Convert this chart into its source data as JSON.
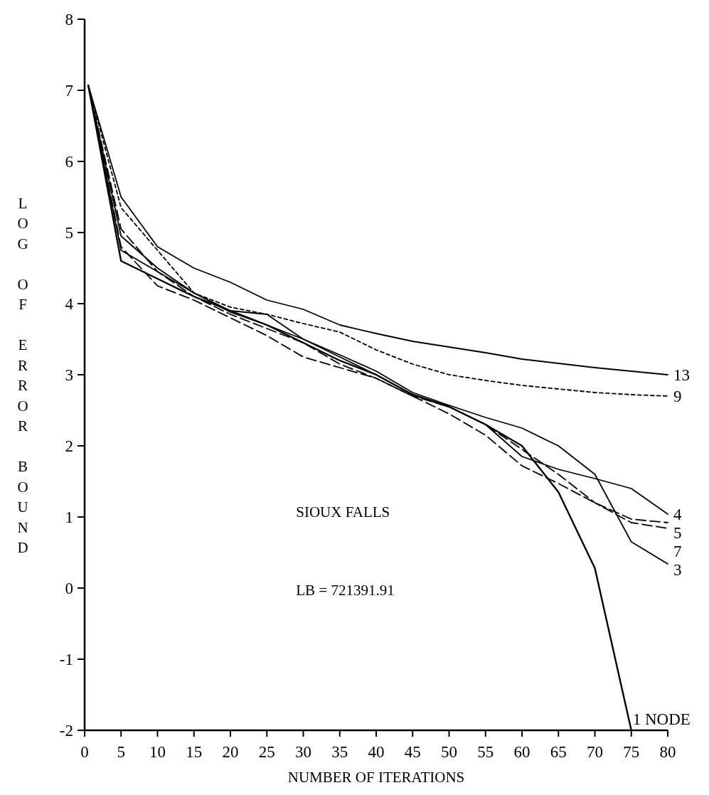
{
  "chart_data": {
    "type": "line",
    "xlabel": "NUMBER OF ITERATIONS",
    "ylabel": "LOG OF ERROR BOUND",
    "annotations": [
      "SIOUX FALLS",
      "LB = 721391.91"
    ],
    "xlim": [
      0,
      80
    ],
    "ylim": [
      -2,
      8
    ],
    "xticks": [
      0,
      5,
      10,
      15,
      20,
      25,
      30,
      35,
      40,
      45,
      50,
      55,
      60,
      65,
      70,
      75,
      80
    ],
    "yticks": [
      -2,
      -1,
      0,
      1,
      2,
      3,
      4,
      5,
      6,
      7,
      8
    ],
    "grid": false,
    "marker": "none",
    "x": [
      0.5,
      5,
      10,
      15,
      20,
      25,
      30,
      35,
      40,
      45,
      50,
      55,
      60,
      65,
      70,
      75,
      80
    ],
    "series": [
      {
        "name": "13",
        "color": "#000000",
        "line_style": "solid",
        "values": [
          7.07,
          5.5,
          4.8,
          4.5,
          4.3,
          4.05,
          3.92,
          3.7,
          3.58,
          3.47,
          3.39,
          3.31,
          3.22,
          3.16,
          3.1,
          3.05,
          3.0
        ]
      },
      {
        "name": "9",
        "color": "#000000",
        "line_style": "dotted",
        "values": [
          7.07,
          5.35,
          4.75,
          4.15,
          3.95,
          3.85,
          3.72,
          3.6,
          3.35,
          3.15,
          3.0,
          2.92,
          2.85,
          2.8,
          2.75,
          2.72,
          2.7
        ]
      },
      {
        "name": "4",
        "color": "#000000",
        "line_style": "solid",
        "values": [
          7.07,
          4.75,
          4.45,
          4.15,
          3.88,
          3.7,
          3.5,
          3.25,
          3.0,
          2.72,
          2.55,
          2.3,
          1.85,
          1.67,
          1.54,
          1.4,
          1.04
        ]
      },
      {
        "name": "5",
        "color": "#000000",
        "line_style": "dashed",
        "values": [
          7.07,
          4.8,
          4.25,
          4.05,
          3.8,
          3.55,
          3.25,
          3.1,
          2.95,
          2.7,
          2.45,
          2.15,
          1.72,
          1.47,
          1.2,
          0.97,
          0.92
        ]
      },
      {
        "name": "7",
        "color": "#000000",
        "line_style": "dashed",
        "values": [
          7.07,
          5.05,
          4.45,
          4.1,
          3.85,
          3.65,
          3.45,
          3.15,
          2.95,
          2.7,
          2.55,
          2.3,
          1.95,
          1.6,
          1.2,
          0.92,
          0.84
        ]
      },
      {
        "name": "3",
        "color": "#000000",
        "line_style": "solid",
        "values": [
          7.07,
          4.95,
          4.5,
          4.15,
          3.9,
          3.85,
          3.5,
          3.28,
          3.05,
          2.75,
          2.57,
          2.4,
          2.25,
          2.0,
          1.6,
          0.65,
          0.34
        ]
      },
      {
        "name": "1 NODE",
        "color": "#000000",
        "line_style": "solid",
        "values": [
          7.07,
          4.6,
          4.35,
          4.1,
          3.9,
          3.7,
          3.45,
          3.2,
          3.0,
          2.72,
          2.55,
          2.3,
          2.0,
          1.35,
          0.28,
          -2,
          null
        ]
      }
    ]
  }
}
